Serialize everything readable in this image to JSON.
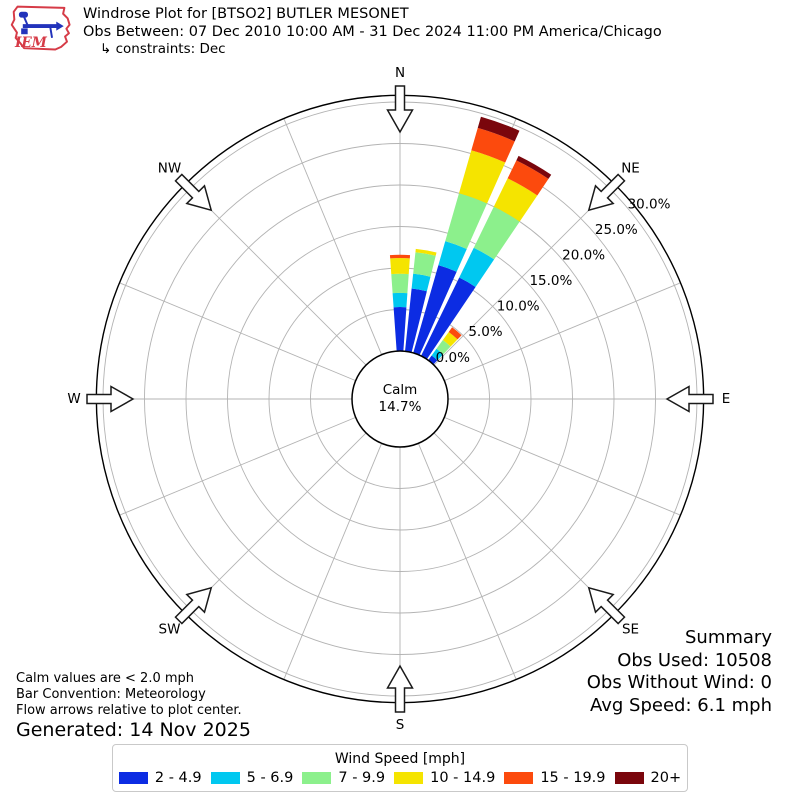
{
  "header": {
    "title": "Windrose Plot for [BTSO2] BUTLER MESONET",
    "subtitle": "Obs Between: 07 Dec 2010 10:00 AM - 31 Dec 2024 11:00 PM America/Chicago",
    "constraints": "↳ constraints: Dec",
    "logo_text": "IEM"
  },
  "chart_data": {
    "type": "windrose",
    "bar_convention": "Meteorology",
    "compass_labels": [
      "N",
      "NE",
      "E",
      "SE",
      "S",
      "SW",
      "W",
      "NW"
    ],
    "ring_values_pct": [
      0,
      5,
      10,
      15,
      20,
      25,
      30
    ],
    "ring_labels": [
      "0.0%",
      "5.0%",
      "10.0%",
      "15.0%",
      "20.0%",
      "25.0%",
      "30.0%"
    ],
    "rmax_pct": 30.8,
    "calm": {
      "label": "Calm",
      "value": "14.7%"
    },
    "speed_bins": [
      {
        "label": "2 - 4.9",
        "color": "#0c2ce3"
      },
      {
        "label": "5 - 6.9",
        "color": "#00c8f0"
      },
      {
        "label": "7 - 9.9",
        "color": "#8cf08c"
      },
      {
        "label": "10 - 14.9",
        "color": "#f5e400"
      },
      {
        "label": "15 - 19.9",
        "color": "#fc4a0d"
      },
      {
        "label": "20+",
        "color": "#7a060c"
      }
    ],
    "petals": [
      {
        "dir_deg": 0,
        "values_pct": [
          5.3,
          1.7,
          2.3,
          1.9,
          0.4,
          0
        ]
      },
      {
        "dir_deg": 10,
        "values_pct": [
          7.6,
          1.8,
          2.6,
          0.4,
          0,
          0
        ]
      },
      {
        "dir_deg": 20,
        "values_pct": [
          11.0,
          3.0,
          6.0,
          5.4,
          2.8,
          1.4
        ]
      },
      {
        "dir_deg": 30,
        "values_pct": [
          10.5,
          4.0,
          5.5,
          3.8,
          2.4,
          0.6
        ]
      },
      {
        "dir_deg": 40,
        "values_pct": [
          0.7,
          1.0,
          1.3,
          1.2,
          0.7,
          0
        ]
      }
    ]
  },
  "notes": {
    "line1": "Calm values are < 2.0 mph",
    "line2": "Bar Convention: Meteorology",
    "line3": "Flow arrows relative to plot center.",
    "generated": "Generated: 14 Nov 2025"
  },
  "summary": {
    "title": "Summary",
    "obs_used": "Obs Used: 10508",
    "obs_without_wind": "Obs Without Wind: 0",
    "avg_speed": "Avg Speed: 6.1 mph"
  },
  "legend": {
    "title": "Wind Speed [mph]"
  },
  "colors": {
    "grid": "#b3b3b3",
    "axis": "#000000",
    "arrow_stroke": "#1a1a1a",
    "logo_red": "#d63b47",
    "logo_blue": "#2233bb"
  }
}
